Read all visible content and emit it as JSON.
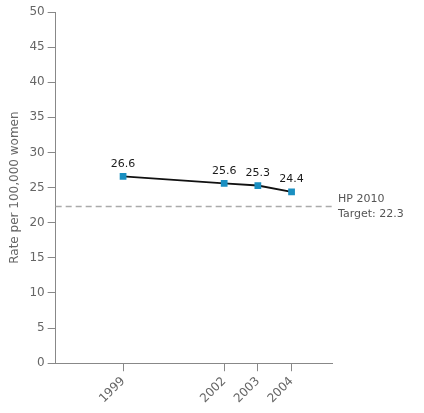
{
  "chart_data": {
    "type": "line",
    "x": [
      1999,
      2002,
      2003,
      2004
    ],
    "values": [
      26.6,
      25.6,
      25.3,
      24.4
    ],
    "color": "#111111",
    "marker": "square",
    "colors": [
      "#1a8fc1",
      "#1a8fc1",
      "#1a8fc1",
      "#1a8fc1"
    ],
    "ylabel": "Rate per 100,000 women",
    "xlim": [
      1997.0,
      2005.2
    ],
    "xticks": [
      1999,
      2002,
      2003,
      2004
    ],
    "ylim": [
      0,
      50
    ],
    "yticks": [
      0,
      5,
      10,
      15,
      20,
      25,
      30,
      35,
      40,
      45,
      50
    ],
    "grid": false,
    "data_labels": true,
    "reference_line": {
      "y": 22.3,
      "color": "#aaaaaa",
      "line_style": "dashed"
    },
    "annotations": [
      {
        "text": "HP 2010",
        "color": "#555555"
      },
      {
        "text": "Target: 22.3",
        "color": "#555555"
      }
    ]
  }
}
